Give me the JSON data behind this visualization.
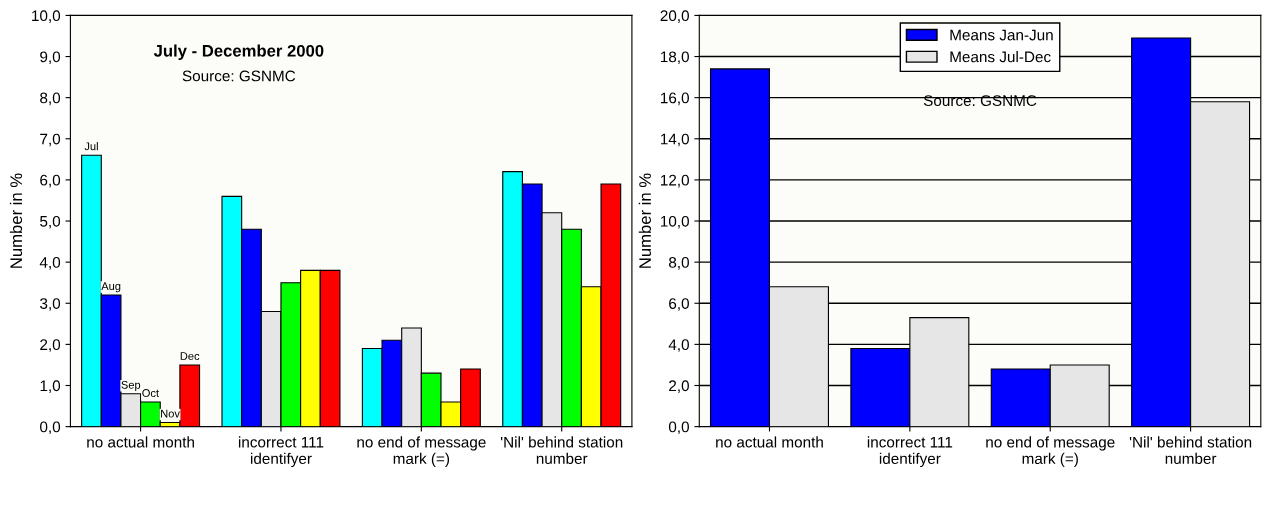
{
  "chart_data": [
    {
      "type": "bar",
      "title": "July - December 2000",
      "annotations": [
        "Source: GSNMC"
      ],
      "ylabel": "Number in %",
      "categories": [
        "no actual month",
        "incorrect 111\nidentifyer",
        "no end of message\nmark (=)",
        "'Nil' behind station\nnumber"
      ],
      "series": [
        {
          "name": "Jul",
          "color": "#00ffff",
          "values": [
            6.6,
            5.6,
            1.9,
            6.2
          ]
        },
        {
          "name": "Aug",
          "color": "#0000ff",
          "values": [
            3.2,
            4.8,
            2.1,
            5.9
          ]
        },
        {
          "name": "Sep",
          "color": "#e6e6e6",
          "values": [
            0.8,
            2.8,
            2.4,
            5.2
          ]
        },
        {
          "name": "Oct",
          "color": "#00ff00",
          "values": [
            0.6,
            3.5,
            1.3,
            4.8
          ]
        },
        {
          "name": "Nov",
          "color": "#ffff00",
          "values": [
            0.1,
            3.8,
            0.6,
            3.4
          ]
        },
        {
          "name": "Dec",
          "color": "#ff0000",
          "values": [
            1.5,
            3.8,
            1.4,
            5.9
          ]
        }
      ],
      "ylim": [
        0,
        10
      ],
      "yticks": [
        {
          "value": 0,
          "label": "0,0"
        },
        {
          "value": 1,
          "label": "1,0"
        },
        {
          "value": 2,
          "label": "2,0"
        },
        {
          "value": 3,
          "label": "3,0"
        },
        {
          "value": 4,
          "label": "4,0"
        },
        {
          "value": 5,
          "label": "5,0"
        },
        {
          "value": 6,
          "label": "6,0"
        },
        {
          "value": 7,
          "label": "7,0"
        },
        {
          "value": 8,
          "label": "8,0"
        },
        {
          "value": 9,
          "label": "9,0"
        },
        {
          "value": 10,
          "label": "10,0"
        }
      ],
      "grid": false,
      "legend": false
    },
    {
      "type": "bar",
      "annotations": [
        "Source: GSNMC"
      ],
      "ylabel": "Number in %",
      "categories": [
        "no actual month",
        "incorrect 111\nidentifyer",
        "no end of message\nmark (=)",
        "'Nil' behind station\nnumber"
      ],
      "series": [
        {
          "name": "Means Jan-Jun",
          "color": "#0000ff",
          "values": [
            17.4,
            3.8,
            2.8,
            18.9
          ]
        },
        {
          "name": "Means Jul-Dec",
          "color": "#e6e6e6",
          "values": [
            6.8,
            5.3,
            3.0,
            15.8
          ]
        }
      ],
      "ylim": [
        0,
        20
      ],
      "yticks": [
        {
          "value": 0,
          "label": "0,0"
        },
        {
          "value": 2,
          "label": "2,0"
        },
        {
          "value": 4,
          "label": "4,0"
        },
        {
          "value": 6,
          "label": "6,0"
        },
        {
          "value": 8,
          "label": "8,0"
        },
        {
          "value": 10,
          "label": "10,0"
        },
        {
          "value": 12,
          "label": "12,0"
        },
        {
          "value": 14,
          "label": "14,0"
        },
        {
          "value": 16,
          "label": "16,0"
        },
        {
          "value": 18,
          "label": "18,0"
        },
        {
          "value": 20,
          "label": "20,0"
        }
      ],
      "grid": "y",
      "legend": "top"
    }
  ]
}
